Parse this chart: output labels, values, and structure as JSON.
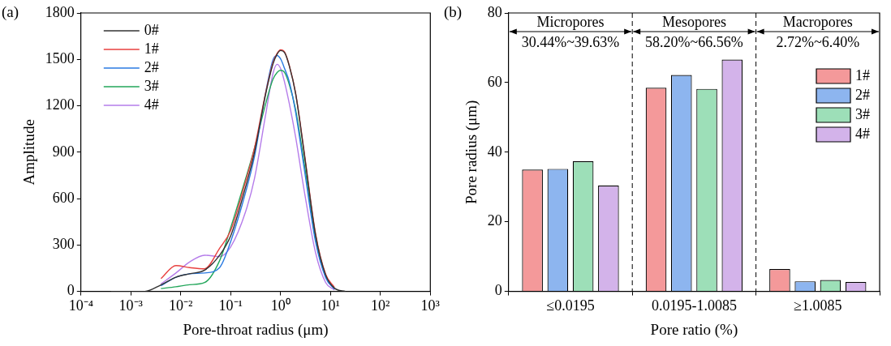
{
  "chart_data": [
    {
      "type": "line",
      "title": "(a)",
      "xlabel": "Pore-throat radius (μm)",
      "ylabel": "Amplitude",
      "log": "x",
      "legend": "top left",
      "line_style": "solid",
      "grid": false,
      "x": [
        0.0004,
        0.0019,
        0.004,
        0.008,
        0.015,
        0.03,
        0.06,
        0.1,
        0.2,
        0.3,
        0.5,
        0.7,
        0.85,
        1,
        1.2,
        1.5,
        2,
        3,
        5,
        8,
        12,
        20
      ],
      "xlim": [
        0.0001,
        1000
      ],
      "xticks": [
        {
          "value": 0.0001,
          "label": "10⁻⁴"
        },
        {
          "value": 0.001,
          "label": "10⁻³"
        },
        {
          "value": 0.01,
          "label": "10⁻²"
        },
        {
          "value": 0.1,
          "label": "10⁻¹"
        },
        {
          "value": 1,
          "label": "10⁰"
        },
        {
          "value": 10,
          "label": "10¹"
        },
        {
          "value": 100,
          "label": "10²"
        },
        {
          "value": 1000,
          "label": "10³"
        }
      ],
      "ylim": [
        0,
        1800
      ],
      "yticks": [
        0,
        300,
        600,
        900,
        1200,
        1500,
        1800
      ],
      "series": [
        {
          "name": "0#",
          "color": "#333333",
          "values": [
            0,
            0,
            42,
            92,
            114,
            137,
            234,
            359,
            678,
            900,
            1273,
            1468,
            1534,
            1557,
            1544,
            1455,
            1278,
            882,
            367,
            106,
            21,
            0
          ]
        },
        {
          "name": "1#",
          "color": "#e8403f",
          "values": [
            null,
            null,
            83,
            167,
            154,
            146,
            279,
            394,
            714,
            927,
            1282,
            1477,
            1539,
            1562,
            1548,
            1459,
            1282,
            891,
            376,
            110,
            26,
            null
          ]
        },
        {
          "name": "2#",
          "color": "#2a7ae2",
          "values": [
            null,
            null,
            36,
            92,
            114,
            119,
            154,
            323,
            643,
            873,
            1282,
            1495,
            1525,
            1503,
            1441,
            1353,
            1157,
            785,
            323,
            89,
            14,
            null
          ]
        },
        {
          "name": "3#",
          "color": "#22a65a",
          "values": [
            null,
            null,
            18,
            30,
            43,
            57,
            199,
            412,
            731,
            927,
            1211,
            1370,
            1415,
            1429,
            1415,
            1335,
            1175,
            820,
            341,
            96,
            18,
            null
          ]
        },
        {
          "name": "4#",
          "color": "#b57cea",
          "values": [
            null,
            null,
            48,
            119,
            190,
            234,
            225,
            288,
            518,
            731,
            1140,
            1406,
            1468,
            1441,
            1353,
            1211,
            998,
            643,
            252,
            57,
            9,
            null
          ]
        }
      ]
    },
    {
      "type": "bar",
      "title": "(b)",
      "xlabel": "Pore ratio (%)",
      "ylabel": "Pore radius (μm)",
      "legend": "top right",
      "grid": false,
      "categories": [
        "≤0.0195",
        "0.0195-1.0085",
        "≥1.0085"
      ],
      "ylim": [
        0,
        80
      ],
      "yticks": [
        0,
        20,
        40,
        60,
        80
      ],
      "series": [
        {
          "name": "1#",
          "color": "#f4999a",
          "values": [
            35.0,
            58.5,
            6.4
          ]
        },
        {
          "name": "2#",
          "color": "#8db5ef",
          "values": [
            35.2,
            62.2,
            2.9
          ]
        },
        {
          "name": "3#",
          "color": "#9ddfb8",
          "values": [
            37.4,
            58.2,
            3.3
          ]
        },
        {
          "name": "4#",
          "color": "#d3b3ea",
          "values": [
            30.4,
            66.6,
            2.7
          ]
        }
      ],
      "annotations": [
        "Micropores",
        "Mesopores",
        "Macropores",
        "30.44%~39.63%",
        "58.20%~66.56%",
        "2.72%~6.40%"
      ]
    }
  ]
}
